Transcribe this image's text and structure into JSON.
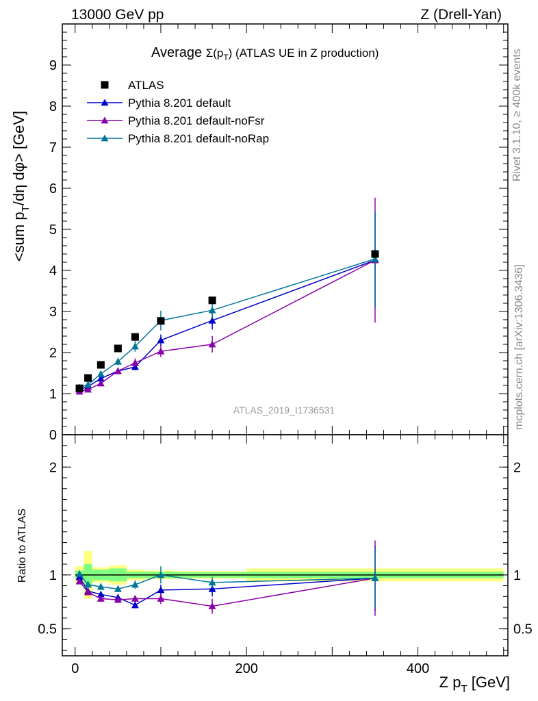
{
  "header": {
    "left": "13000 GeV pp",
    "right": "Z (Drell-Yan)"
  },
  "side_text": {
    "rivet": "Rivet 3.1.10, ≥ 400k events",
    "mcplots": "mcplots.cern.ch [arXiv:1306.3436]"
  },
  "chart_data": {
    "type": "line",
    "title": "Average Σ(pT) (ATLAS UE in Z production)",
    "title_main": "Average ",
    "title_sigma": "Σ(p",
    "title_sub": "T",
    "title_tail": ") (ATLAS UE in Z production)",
    "analysis_id": "ATLAS_2019_I1736531",
    "xlabel": "Z p",
    "xlabel_sub": "T",
    "xlabel_unit": " [GeV]",
    "ylabel": "<sum pT/dη dφ> [GeV]",
    "ylabel_parts": [
      "<sum p",
      "T",
      "/dη dφ> [GeV]"
    ],
    "ratio_ylabel": "Ratio to ATLAS",
    "xlim": [
      -15,
      505
    ],
    "ylim": [
      0,
      10
    ],
    "ratio_ylim": [
      0.25,
      2.3
    ],
    "x_ticks": [
      0,
      200,
      400
    ],
    "y_ticks": [
      0,
      1,
      2,
      3,
      4,
      5,
      6,
      7,
      8,
      9
    ],
    "ratio_ticks": [
      0.5,
      1,
      2
    ],
    "data": {
      "name": "ATLAS",
      "color": "#000000",
      "x": [
        5,
        15,
        30,
        50,
        70,
        100,
        160,
        350
      ],
      "y": [
        1.13,
        1.38,
        1.7,
        2.1,
        2.38,
        2.77,
        3.27,
        4.4
      ],
      "bins": [
        [
          0,
          10
        ],
        [
          10,
          20
        ],
        [
          20,
          40
        ],
        [
          40,
          60
        ],
        [
          60,
          80
        ],
        [
          80,
          120
        ],
        [
          120,
          200
        ],
        [
          200,
          500
        ]
      ],
      "band_inner": [
        0.04,
        0.1,
        0.05,
        0.06,
        0.03,
        0.03,
        0.025,
        0.03
      ],
      "band_outer": [
        0.08,
        0.22,
        0.07,
        0.09,
        0.05,
        0.04,
        0.035,
        0.06
      ]
    },
    "series": [
      {
        "name": "Pythia 8.201 default",
        "color": "#0000cc",
        "y": [
          1.1,
          1.17,
          1.37,
          1.55,
          1.65,
          2.3,
          2.78,
          4.25
        ],
        "err": [
          0.04,
          0.04,
          0.06,
          0.07,
          0.08,
          0.14,
          0.22,
          1.15
        ],
        "ratio": [
          0.98,
          0.85,
          0.82,
          0.79,
          0.72,
          0.86,
          0.87,
          0.97
        ],
        "ratio_err": [
          0.02,
          0.02,
          0.02,
          0.03,
          0.03,
          0.05,
          0.07,
          0.3
        ]
      },
      {
        "name": "Pythia 8.201 default-noFsr",
        "color": "#8800aa",
        "y": [
          1.05,
          1.1,
          1.25,
          1.55,
          1.75,
          2.03,
          2.2,
          4.25
        ],
        "err": [
          0.04,
          0.04,
          0.06,
          0.08,
          0.11,
          0.14,
          0.2,
          1.52
        ],
        "ratio": [
          0.94,
          0.84,
          0.78,
          0.77,
          0.78,
          0.78,
          0.71,
          0.97
        ],
        "ratio_err": [
          0.02,
          0.02,
          0.02,
          0.03,
          0.03,
          0.05,
          0.07,
          0.35
        ]
      },
      {
        "name": "Pythia 8.201 default-noRap",
        "color": "#007799",
        "y": [
          1.15,
          1.22,
          1.48,
          1.78,
          2.15,
          2.78,
          3.03,
          4.28
        ],
        "err": [
          0.04,
          0.05,
          0.07,
          0.09,
          0.13,
          0.24,
          0.18,
          1.17
        ],
        "ratio": [
          1.01,
          0.91,
          0.89,
          0.87,
          0.91,
          1.0,
          0.93,
          0.97
        ],
        "ratio_err": [
          0.03,
          0.03,
          0.03,
          0.03,
          0.04,
          0.08,
          0.05,
          0.28
        ]
      }
    ],
    "colors": {
      "band_inner": "#80ff80",
      "band_outer": "#ffff80"
    }
  }
}
